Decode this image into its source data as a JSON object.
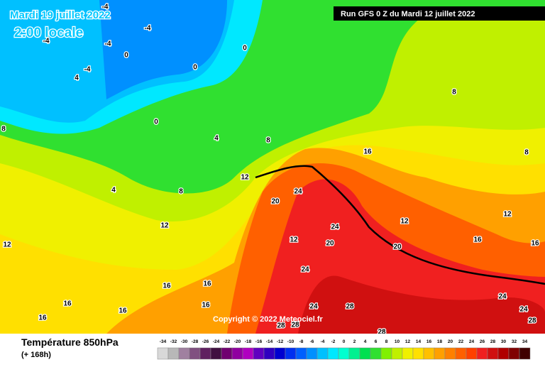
{
  "header": {
    "date": "Mardi 19 juillet 2022",
    "time": "2:00 locale",
    "run": "Run GFS 0 Z du Mardi 12 juillet 2022",
    "copyright": "Copyright © 2022 Meteociel.fr"
  },
  "footer": {
    "title": "Température 850hPa",
    "lead": "(+ 168h)"
  },
  "scale": {
    "values": [
      -34,
      -32,
      -30,
      -28,
      -26,
      -24,
      -22,
      -20,
      -18,
      -16,
      -14,
      -12,
      -10,
      -8,
      -6,
      -4,
      -2,
      0,
      2,
      4,
      6,
      8,
      10,
      12,
      14,
      16,
      18,
      20,
      22,
      24,
      26,
      28,
      30,
      32,
      34
    ],
    "colors": [
      "#d8d8d8",
      "#b8b8b8",
      "#a080a0",
      "#805080",
      "#602060",
      "#401040",
      "#700070",
      "#9000a0",
      "#b000c0",
      "#6000c0",
      "#3000c0",
      "#0000d0",
      "#0030f0",
      "#0060ff",
      "#0090ff",
      "#00c0ff",
      "#00e8ff",
      "#00ffd0",
      "#00f090",
      "#00e050",
      "#30e030",
      "#80f000",
      "#c0f000",
      "#f0f000",
      "#ffe000",
      "#ffc000",
      "#ffa000",
      "#ff8000",
      "#ff6000",
      "#ff4000",
      "#f02020",
      "#d01010",
      "#b00000",
      "#800000",
      "#400000"
    ]
  },
  "contour_labels": [
    -4,
    -4,
    -4,
    -4,
    -4,
    0,
    0,
    0,
    0,
    4,
    4,
    4,
    8,
    8,
    8,
    8,
    8,
    12,
    12,
    12,
    12,
    12,
    16,
    16,
    16,
    16,
    16,
    16,
    20,
    20,
    20,
    24,
    24,
    24,
    24,
    28,
    28,
    28,
    28,
    16,
    12,
    16,
    16,
    24,
    24,
    28
  ]
}
